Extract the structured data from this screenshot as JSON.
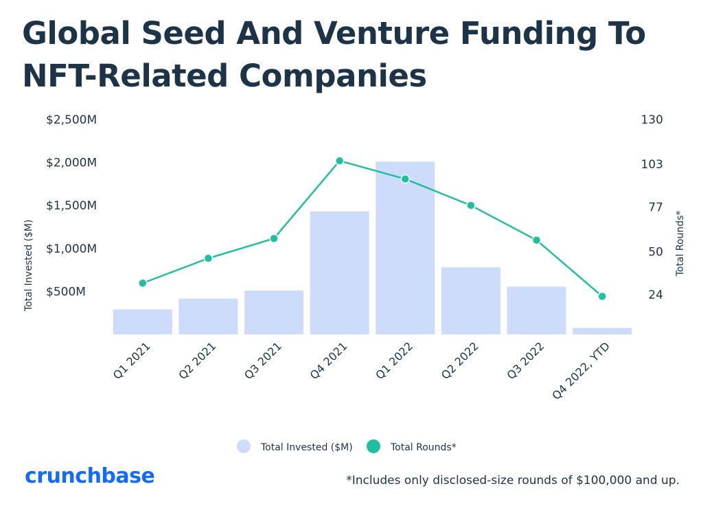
{
  "header": {
    "title": "Global Seed And Venture Funding To NFT-Related Companies"
  },
  "chart_data": {
    "type": "bar",
    "title": "Global Seed And Venture Funding To NFT-Related Companies",
    "categories": [
      "Q1 2021",
      "Q2 2021",
      "Q3 2021",
      "Q4 2021",
      "Q1 2022",
      "Q2 2022",
      "Q3 2022",
      "Q4 2022, YTD"
    ],
    "series": [
      {
        "name": "Total Invested ($M)",
        "type": "bar",
        "axis": "left",
        "color": "#cddcfb",
        "values": [
          290,
          415,
          510,
          1430,
          2010,
          780,
          555,
          75
        ]
      },
      {
        "name": "Total Rounds*",
        "type": "line",
        "axis": "right",
        "color": "#1fbfa0",
        "values": [
          31,
          46,
          58,
          105,
          94,
          78,
          57,
          23
        ]
      }
    ],
    "y_left": {
      "label": "Total Invested ($M)",
      "ylim": [
        0,
        2500
      ],
      "ticks": [
        500,
        1000,
        1500,
        2000,
        2500
      ],
      "tick_labels": [
        "$500M",
        "$1,000M",
        "$1,500M",
        "$2,000M",
        "$2,500M"
      ]
    },
    "y_right": {
      "label": "Total Rounds*",
      "ylim": [
        0,
        130
      ],
      "ticks": [
        24,
        50,
        77,
        103,
        130
      ],
      "tick_labels": [
        "24",
        "50",
        "77",
        "103",
        "130"
      ]
    },
    "grid": false,
    "legend": {
      "position": "bottom",
      "items": [
        "Total Invested ($M)",
        "Total Rounds*"
      ]
    }
  },
  "footer": {
    "brand": "crunchbase",
    "note": "*Includes only disclosed-size rounds of $100,000 and up."
  }
}
